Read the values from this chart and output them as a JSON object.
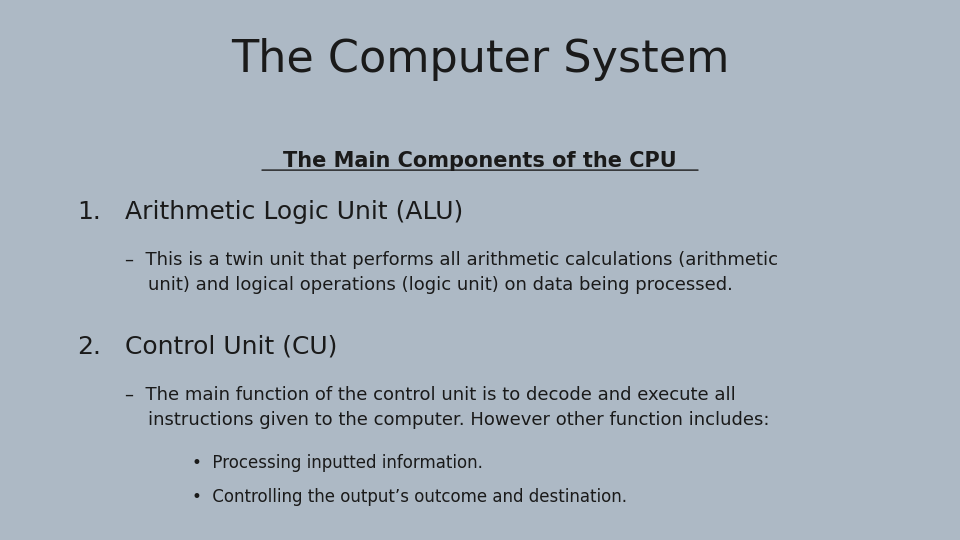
{
  "title": "The Computer System",
  "background_color": "#adb9c5",
  "text_color": "#1a1a1a",
  "subtitle": "The Main Components of the CPU",
  "item1_number": "1.",
  "item1_text": "Arithmetic Logic Unit (ALU)",
  "item1_sub": "–  This is a twin unit that performs all arithmetic calculations (arithmetic\n    unit) and logical operations (logic unit) on data being processed.",
  "item2_number": "2.",
  "item2_text": "Control Unit (CU)",
  "item2_sub": "–  The main function of the control unit is to decode and execute all\n    instructions given to the computer. However other function includes:",
  "bullet1": "•  Processing inputted information.",
  "bullet2": "•  Controlling the output’s outcome and destination.",
  "title_fontsize": 32,
  "subtitle_fontsize": 15,
  "item_fontsize": 18,
  "sub_fontsize": 13,
  "bullet_fontsize": 12
}
